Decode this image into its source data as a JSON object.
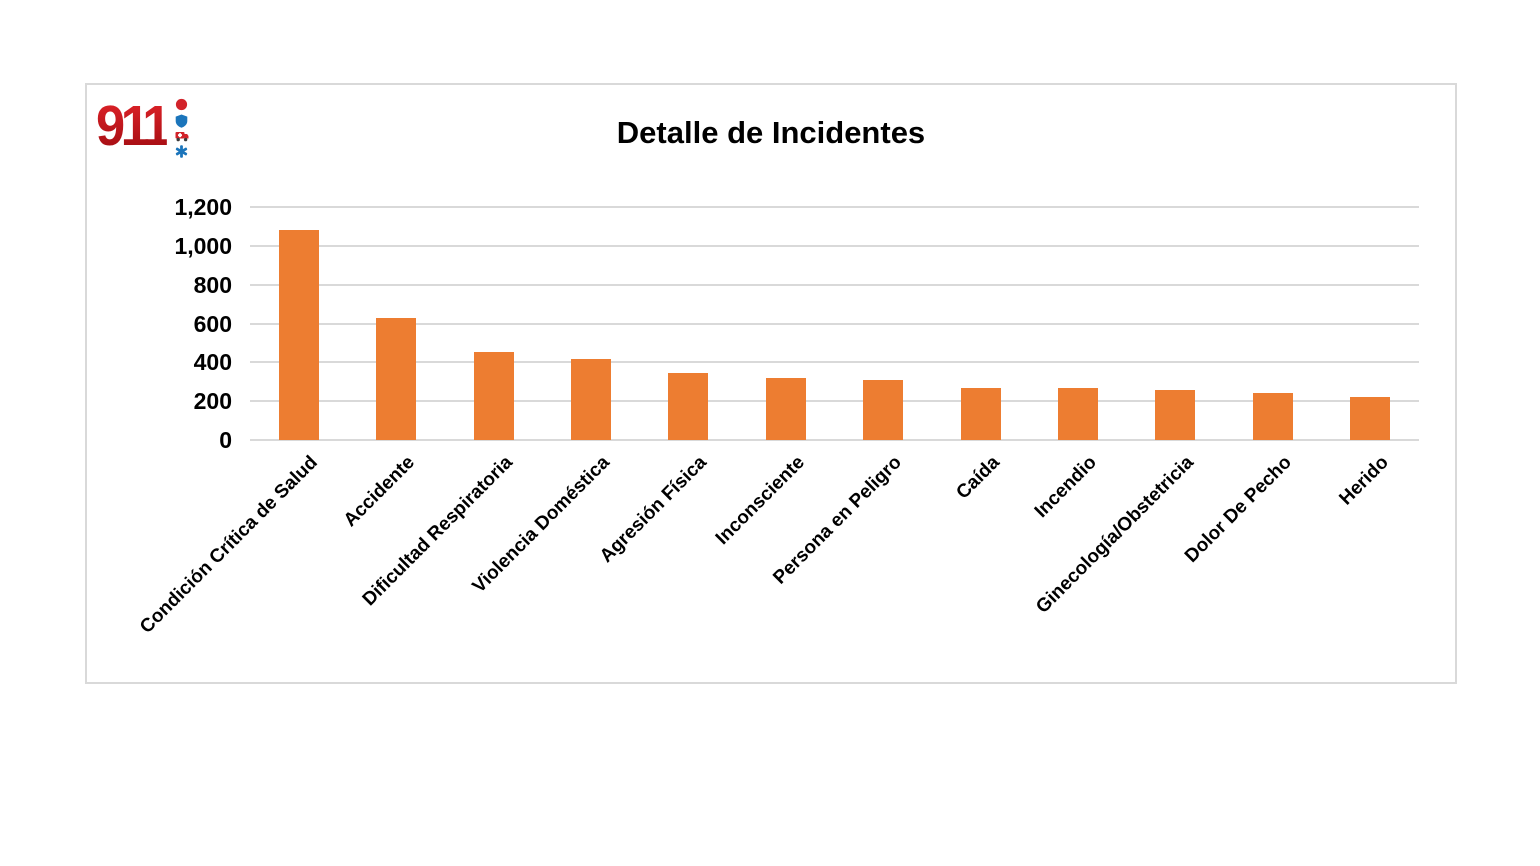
{
  "logo": {
    "text": "911",
    "color": "#c8161c",
    "icons": [
      {
        "name": "red-dot-icon",
        "color": "#d2232a"
      },
      {
        "name": "blue-shield-icon",
        "color": "#1b75bb"
      },
      {
        "name": "red-ambulance-icon",
        "color": "#d2232a"
      },
      {
        "name": "blue-star-of-life-icon",
        "color": "#1b75bb"
      }
    ]
  },
  "chart_data": {
    "type": "bar",
    "title": "Detalle de Incidentes",
    "categories": [
      "Condición Crítica de Salud",
      "Accidente",
      "Dificultad Respiratoria",
      "Violencia Doméstica",
      "Agresión Física",
      "Inconsciente",
      "Persona en Peligro",
      "Caída",
      "Incendio",
      "Ginecología/Obstetricia",
      "Dolor De Pecho",
      "Herido"
    ],
    "values": [
      1080,
      630,
      455,
      415,
      345,
      320,
      310,
      270,
      270,
      260,
      240,
      220
    ],
    "xlabel": "",
    "ylabel": "",
    "ylim": [
      0,
      1200
    ],
    "ytick_values": [
      0,
      200,
      400,
      600,
      800,
      1000,
      1200
    ],
    "ytick_labels": [
      "0",
      "200",
      "400",
      "600",
      "800",
      "1,000",
      "1,200"
    ],
    "grid": true,
    "legend": false,
    "bar_color": "#ed7d31",
    "gridline_color": "#d9d9d9",
    "text_color": "#000000",
    "x_label_rotation_deg": 45
  }
}
